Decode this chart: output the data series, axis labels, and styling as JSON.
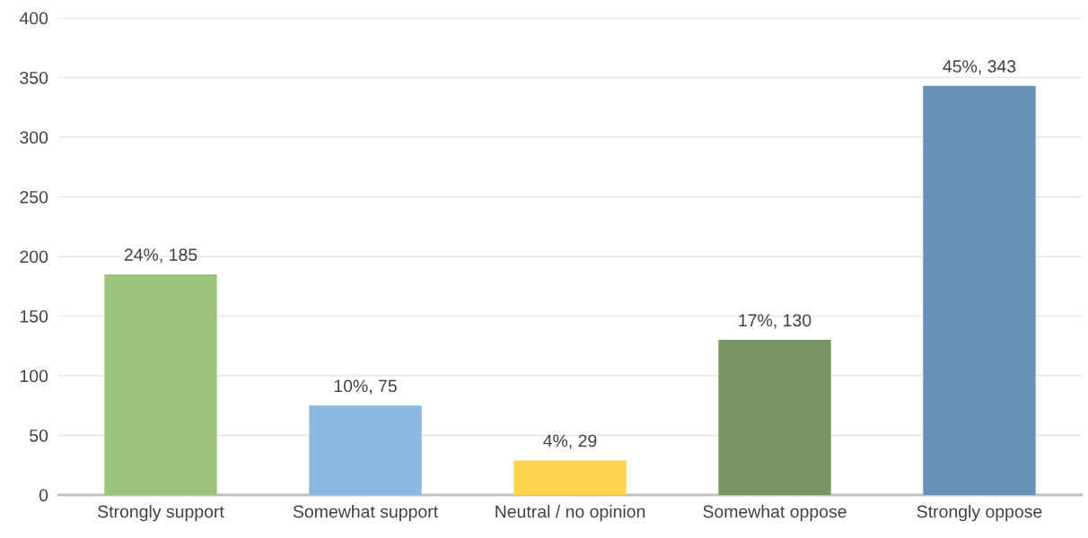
{
  "chart_data": {
    "type": "bar",
    "categories": [
      "Strongly support",
      "Somewhat support",
      "Neutral / no opinion",
      "Somewhat oppose",
      "Strongly oppose"
    ],
    "values": [
      185,
      75,
      29,
      130,
      343
    ],
    "colors": [
      "#9bc47c",
      "#8db8e2",
      "#fdd44f",
      "#7a9564",
      "#6690b6"
    ],
    "value_labels": [
      "24%, 185",
      "10%, 75",
      "4%, 29",
      "17%, 130",
      "45%, 343"
    ],
    "ylim": [
      0,
      400
    ],
    "yticks": [
      0,
      50,
      100,
      150,
      200,
      250,
      300,
      350,
      400
    ],
    "grid": "y"
  }
}
